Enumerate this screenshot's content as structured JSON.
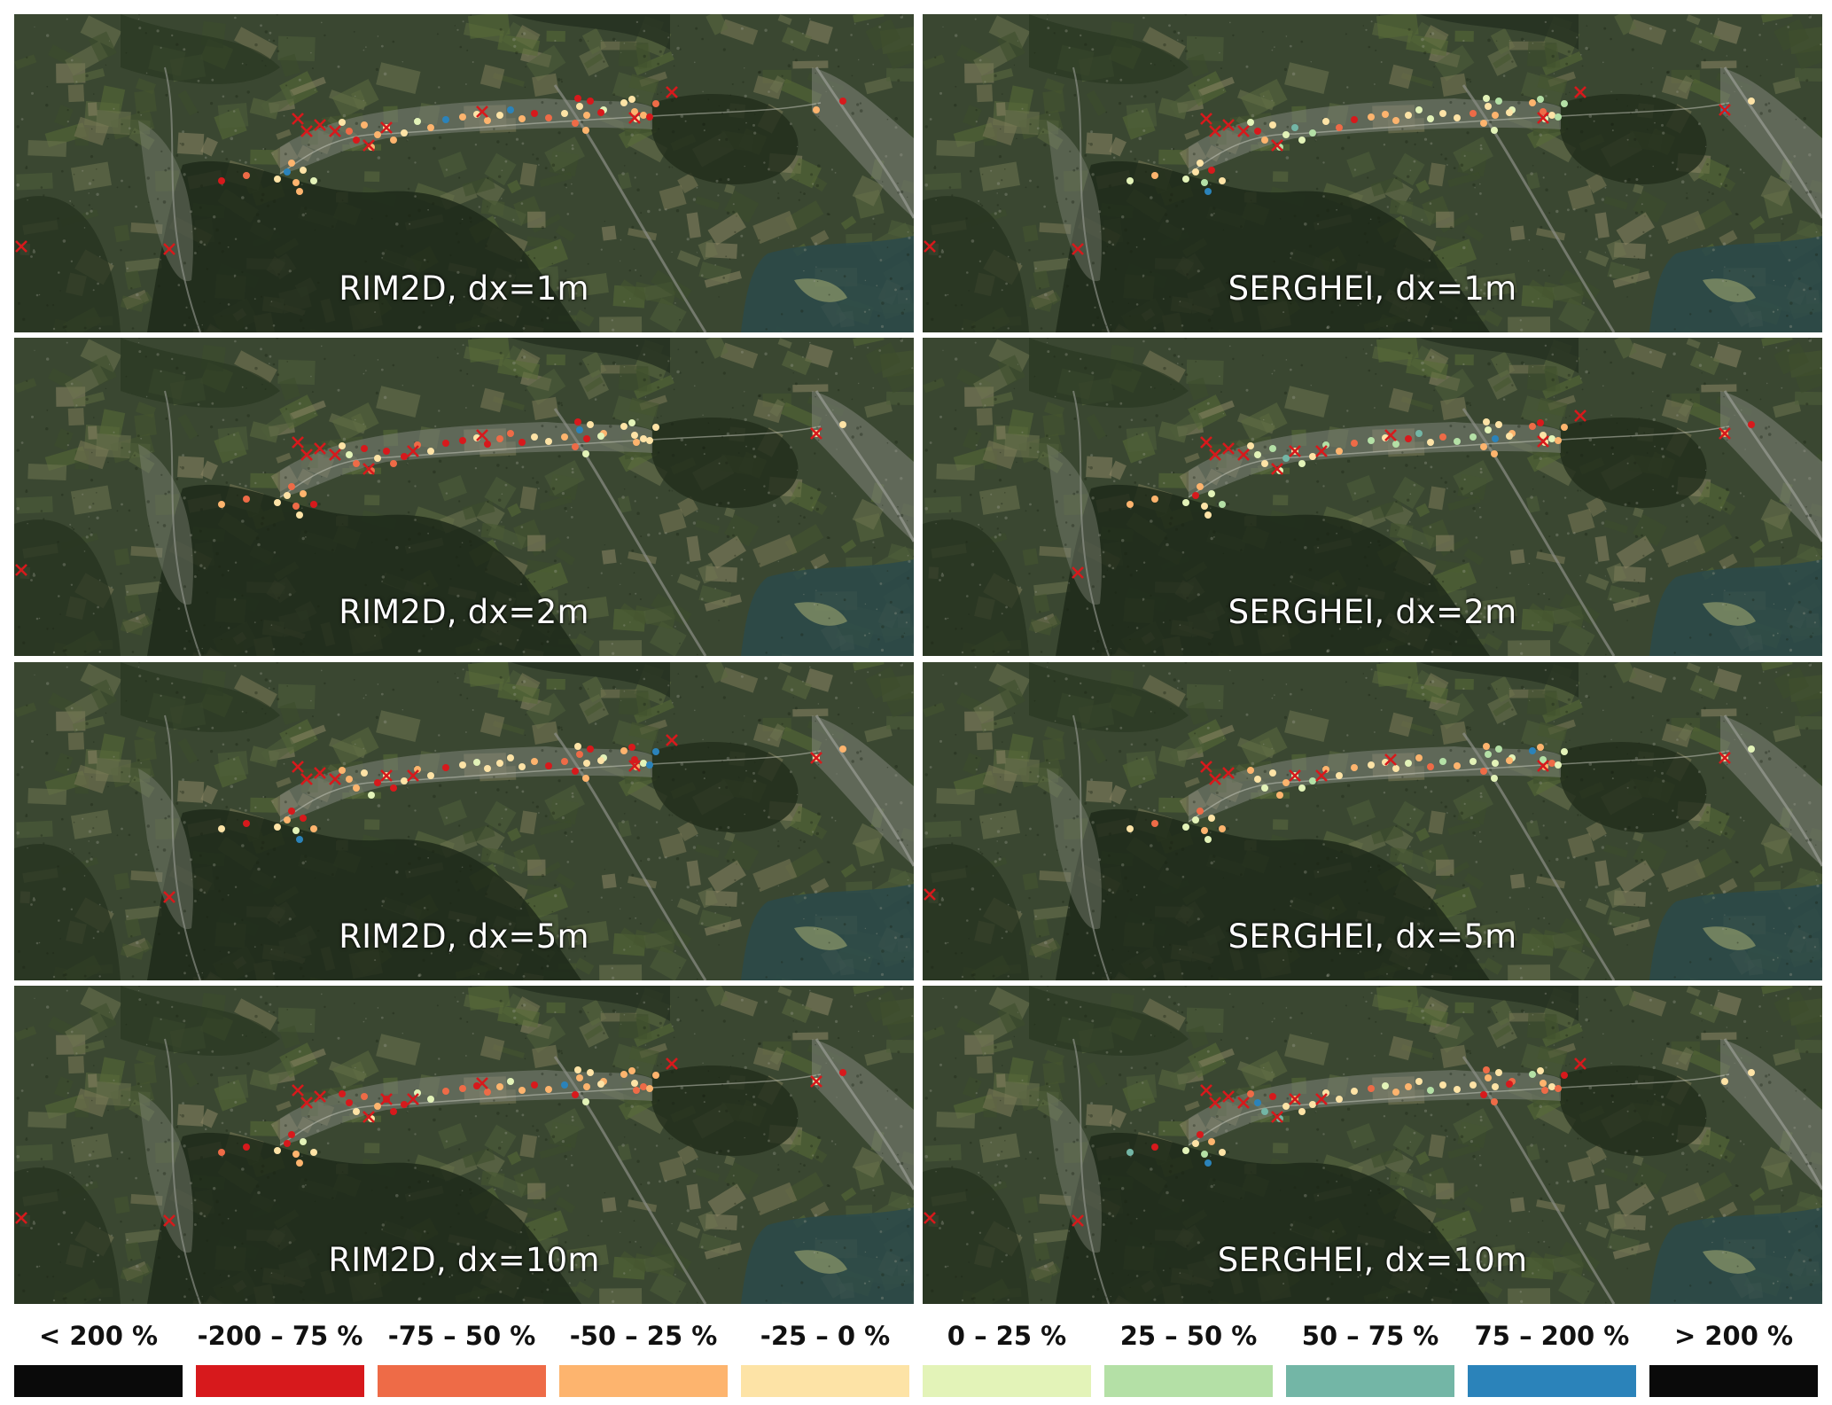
{
  "panels": [
    {
      "label": "RIM2D, dx=1m"
    },
    {
      "label": "SERGHEI, dx=1m"
    },
    {
      "label": "RIM2D, dx=2m"
    },
    {
      "label": "SERGHEI, dx=2m"
    },
    {
      "label": "RIM2D, dx=5m"
    },
    {
      "label": "SERGHEI, dx=5m"
    },
    {
      "label": "RIM2D, dx=10m"
    },
    {
      "label": "SERGHEI, dx=10m"
    }
  ],
  "legend": [
    {
      "label": "< 200 %",
      "color": "#0a0a0a"
    },
    {
      "label": "-200 – 75 %",
      "color": "#d7191c"
    },
    {
      "label": "-75 – 50 %",
      "color": "#ee6b47"
    },
    {
      "label": "-50 – 25 %",
      "color": "#fdb46e"
    },
    {
      "label": "-25 – 0 %",
      "color": "#fde3a6"
    },
    {
      "label": "0 – 25 %",
      "color": "#e3f3b8"
    },
    {
      "label": "25 – 50 %",
      "color": "#b4e0a6"
    },
    {
      "label": "50 – 75 %",
      "color": "#73b6a6"
    },
    {
      "label": "75 – 200 %",
      "color": "#2b83ba"
    },
    {
      "label": "> 200 %",
      "color": "#0a0a0a"
    }
  ]
}
